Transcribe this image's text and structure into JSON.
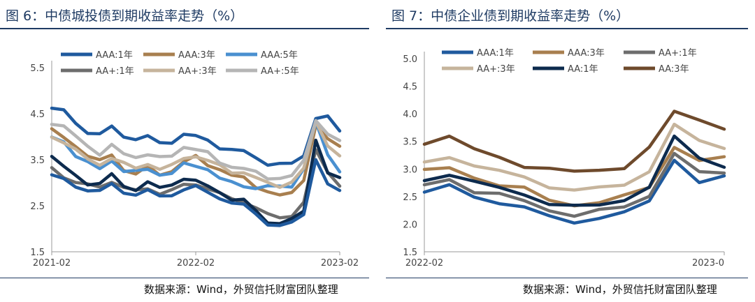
{
  "source_text": "数据来源：Wind，外贸信托财富团队整理",
  "chart_data": [
    {
      "type": "line",
      "title": "图 6：中债城投债到期收益率走势（%）",
      "ylim": [
        1.5,
        5.5
      ],
      "yticks": [
        "1.5",
        "2.5",
        "3.5",
        "4.5",
        "5.5"
      ],
      "xticks": [
        "2021-02",
        "2022-02",
        "2023-02"
      ],
      "grid": false,
      "legend": "top",
      "x": [
        "2021-02",
        "2021-03",
        "2021-04",
        "2021-05",
        "2021-06",
        "2021-07",
        "2021-08",
        "2021-09",
        "2021-10",
        "2021-11",
        "2021-12",
        "2022-01",
        "2022-02",
        "2022-03",
        "2022-04",
        "2022-05",
        "2022-06",
        "2022-07",
        "2022-08",
        "2022-09",
        "2022-10",
        "2022-11",
        "2022-12",
        "2023-01",
        "2023-02"
      ],
      "series": [
        {
          "name": "AAA:1年",
          "color": "#1f5a9e",
          "values": [
            4.62,
            4.55,
            4.3,
            4.1,
            4.05,
            4.2,
            4.02,
            3.95,
            4.0,
            3.85,
            3.9,
            4.05,
            4.0,
            3.92,
            3.78,
            3.7,
            3.68,
            3.55,
            3.42,
            3.38,
            3.42,
            3.6,
            4.42,
            4.4,
            4.14
          ]
        },
        {
          "name": "AAA:3年",
          "color": "#a87f4f",
          "values": [
            4.13,
            3.98,
            3.8,
            3.6,
            3.45,
            3.62,
            3.28,
            3.2,
            3.32,
            3.2,
            3.25,
            3.45,
            3.55,
            3.42,
            3.28,
            3.15,
            3.1,
            2.95,
            2.78,
            2.72,
            2.78,
            3.1,
            4.2,
            3.95,
            3.8
          ]
        },
        {
          "name": "AAA:5年",
          "color": "#4a90d0",
          "values": [
            3.98,
            3.88,
            3.62,
            3.42,
            3.3,
            3.48,
            3.28,
            3.22,
            3.3,
            3.18,
            3.22,
            3.38,
            3.38,
            3.3,
            3.1,
            2.98,
            2.95,
            2.88,
            2.92,
            2.9,
            2.95,
            3.3,
            4.3,
            3.6,
            3.28
          ]
        },
        {
          "name": "AA+:1年",
          "color": "#6d6d6d",
          "values": [
            3.3,
            3.15,
            3.0,
            2.95,
            2.9,
            3.05,
            2.88,
            2.82,
            2.88,
            2.78,
            2.82,
            2.95,
            2.98,
            2.88,
            2.75,
            2.65,
            2.6,
            2.45,
            2.3,
            2.25,
            2.3,
            2.55,
            3.7,
            3.25,
            2.95
          ]
        },
        {
          "name": "AA+:3年",
          "color": "#c6b49c",
          "values": [
            4.0,
            3.9,
            3.7,
            3.5,
            3.4,
            3.55,
            3.4,
            3.32,
            3.42,
            3.3,
            3.35,
            3.55,
            3.58,
            3.48,
            3.35,
            3.25,
            3.22,
            3.1,
            2.98,
            2.95,
            3.0,
            3.3,
            4.32,
            3.85,
            3.55
          ]
        },
        {
          "name": "AA+:5年",
          "color": "#b5b5b5",
          "values": [
            4.32,
            4.22,
            4.0,
            3.78,
            3.65,
            3.8,
            3.62,
            3.55,
            3.65,
            3.52,
            3.58,
            3.78,
            3.75,
            3.62,
            3.45,
            3.35,
            3.32,
            3.2,
            3.12,
            3.1,
            3.15,
            3.45,
            4.4,
            4.05,
            3.9
          ]
        },
        {
          "name": "",
          "color": "#0d2b4e",
          "values": [
            3.58,
            3.35,
            3.12,
            3.0,
            2.98,
            3.18,
            2.9,
            2.88,
            3.0,
            2.88,
            2.95,
            3.12,
            3.02,
            2.92,
            2.8,
            2.65,
            2.6,
            2.4,
            2.15,
            2.12,
            2.18,
            2.4,
            3.95,
            3.2,
            3.08
          ]
        },
        {
          "name": "",
          "color": "#1f5a9e",
          "values": [
            3.18,
            3.05,
            2.92,
            2.85,
            2.82,
            2.95,
            2.8,
            2.75,
            2.82,
            2.7,
            2.75,
            2.85,
            2.9,
            2.8,
            2.68,
            2.55,
            2.5,
            2.35,
            2.1,
            2.05,
            2.12,
            2.35,
            3.5,
            2.95,
            2.82
          ]
        }
      ]
    },
    {
      "type": "line",
      "title": "图 7：中债企业债到期收益率走势（%）",
      "ylim": [
        1.5,
        5.0
      ],
      "yticks": [
        "1.5",
        "2.0",
        "2.5",
        "3.0",
        "3.5",
        "4.0",
        "4.5",
        "5.0"
      ],
      "xticks": [
        "2022-02",
        "2023-0"
      ],
      "grid": false,
      "legend": "top",
      "x": [
        "2022-02",
        "2022-03",
        "2022-04",
        "2022-05",
        "2022-06",
        "2022-07",
        "2022-08",
        "2022-09",
        "2022-10",
        "2022-11",
        "2022-12",
        "2023-01",
        "2023-02"
      ],
      "series": [
        {
          "name": "AAA:1年",
          "color": "#1f5a9e",
          "values": [
            2.58,
            2.68,
            2.5,
            2.4,
            2.3,
            2.12,
            2.05,
            2.12,
            2.2,
            2.4,
            3.2,
            2.75,
            2.85
          ]
        },
        {
          "name": "AAA:3年",
          "color": "#a87f4f",
          "values": [
            2.95,
            3.02,
            2.85,
            2.72,
            2.62,
            2.45,
            2.35,
            2.4,
            2.48,
            2.7,
            3.4,
            3.15,
            3.18
          ]
        },
        {
          "name": "AA+:1年",
          "color": "#6d6d6d",
          "values": [
            2.7,
            2.8,
            2.62,
            2.52,
            2.42,
            2.25,
            2.18,
            2.22,
            2.32,
            2.52,
            3.3,
            2.9,
            2.95
          ]
        },
        {
          "name": "AA+:3年",
          "color": "#c6b49c",
          "values": [
            3.1,
            3.25,
            3.05,
            2.95,
            2.85,
            2.7,
            2.6,
            2.65,
            2.72,
            2.98,
            3.78,
            3.5,
            3.4
          ]
        },
        {
          "name": "AA:1年",
          "color": "#0d2b4e",
          "values": [
            2.8,
            2.92,
            2.75,
            2.65,
            2.55,
            2.38,
            2.3,
            2.35,
            2.45,
            2.68,
            3.55,
            3.22,
            3.05
          ]
        },
        {
          "name": "AA:3年",
          "color": "#6e4a2c",
          "values": [
            3.5,
            3.58,
            3.35,
            3.2,
            3.08,
            2.98,
            2.95,
            2.98,
            3.05,
            3.35,
            4.05,
            3.9,
            3.75
          ]
        }
      ]
    }
  ]
}
